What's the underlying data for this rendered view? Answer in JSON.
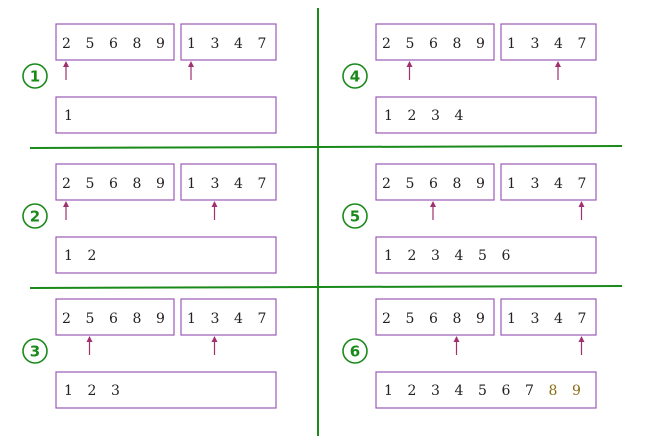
{
  "colors": {
    "box_border": "#9b59b6",
    "divider": "#1a8a1a",
    "step_marker": "#1a8a1a",
    "pointer_arrow": "#a0306e",
    "highlight_text": "#8b6b12",
    "text": "#222222"
  },
  "array_a": [
    "2",
    "5",
    "6",
    "8",
    "9"
  ],
  "array_b": [
    "1",
    "3",
    "4",
    "7"
  ],
  "steps": [
    {
      "label": "1",
      "pointer_a": 0,
      "pointer_b": 0,
      "result": [
        "1"
      ],
      "highlighted_from": null
    },
    {
      "label": "2",
      "pointer_a": 0,
      "pointer_b": 1,
      "result": [
        "1",
        "2"
      ],
      "highlighted_from": null
    },
    {
      "label": "3",
      "pointer_a": 1,
      "pointer_b": 1,
      "result": [
        "1",
        "2",
        "3"
      ],
      "highlighted_from": null
    },
    {
      "label": "4",
      "pointer_a": 1,
      "pointer_b": 2,
      "result": [
        "1",
        "2",
        "3",
        "4"
      ],
      "highlighted_from": null
    },
    {
      "label": "5",
      "pointer_a": 2,
      "pointer_b": 3,
      "result": [
        "1",
        "2",
        "3",
        "4",
        "5",
        "6"
      ],
      "highlighted_from": null
    },
    {
      "label": "6",
      "pointer_a": 3,
      "pointer_b": 3,
      "result": [
        "1",
        "2",
        "3",
        "4",
        "5",
        "6",
        "7",
        "8",
        "9"
      ],
      "highlighted_from": 7
    }
  ]
}
